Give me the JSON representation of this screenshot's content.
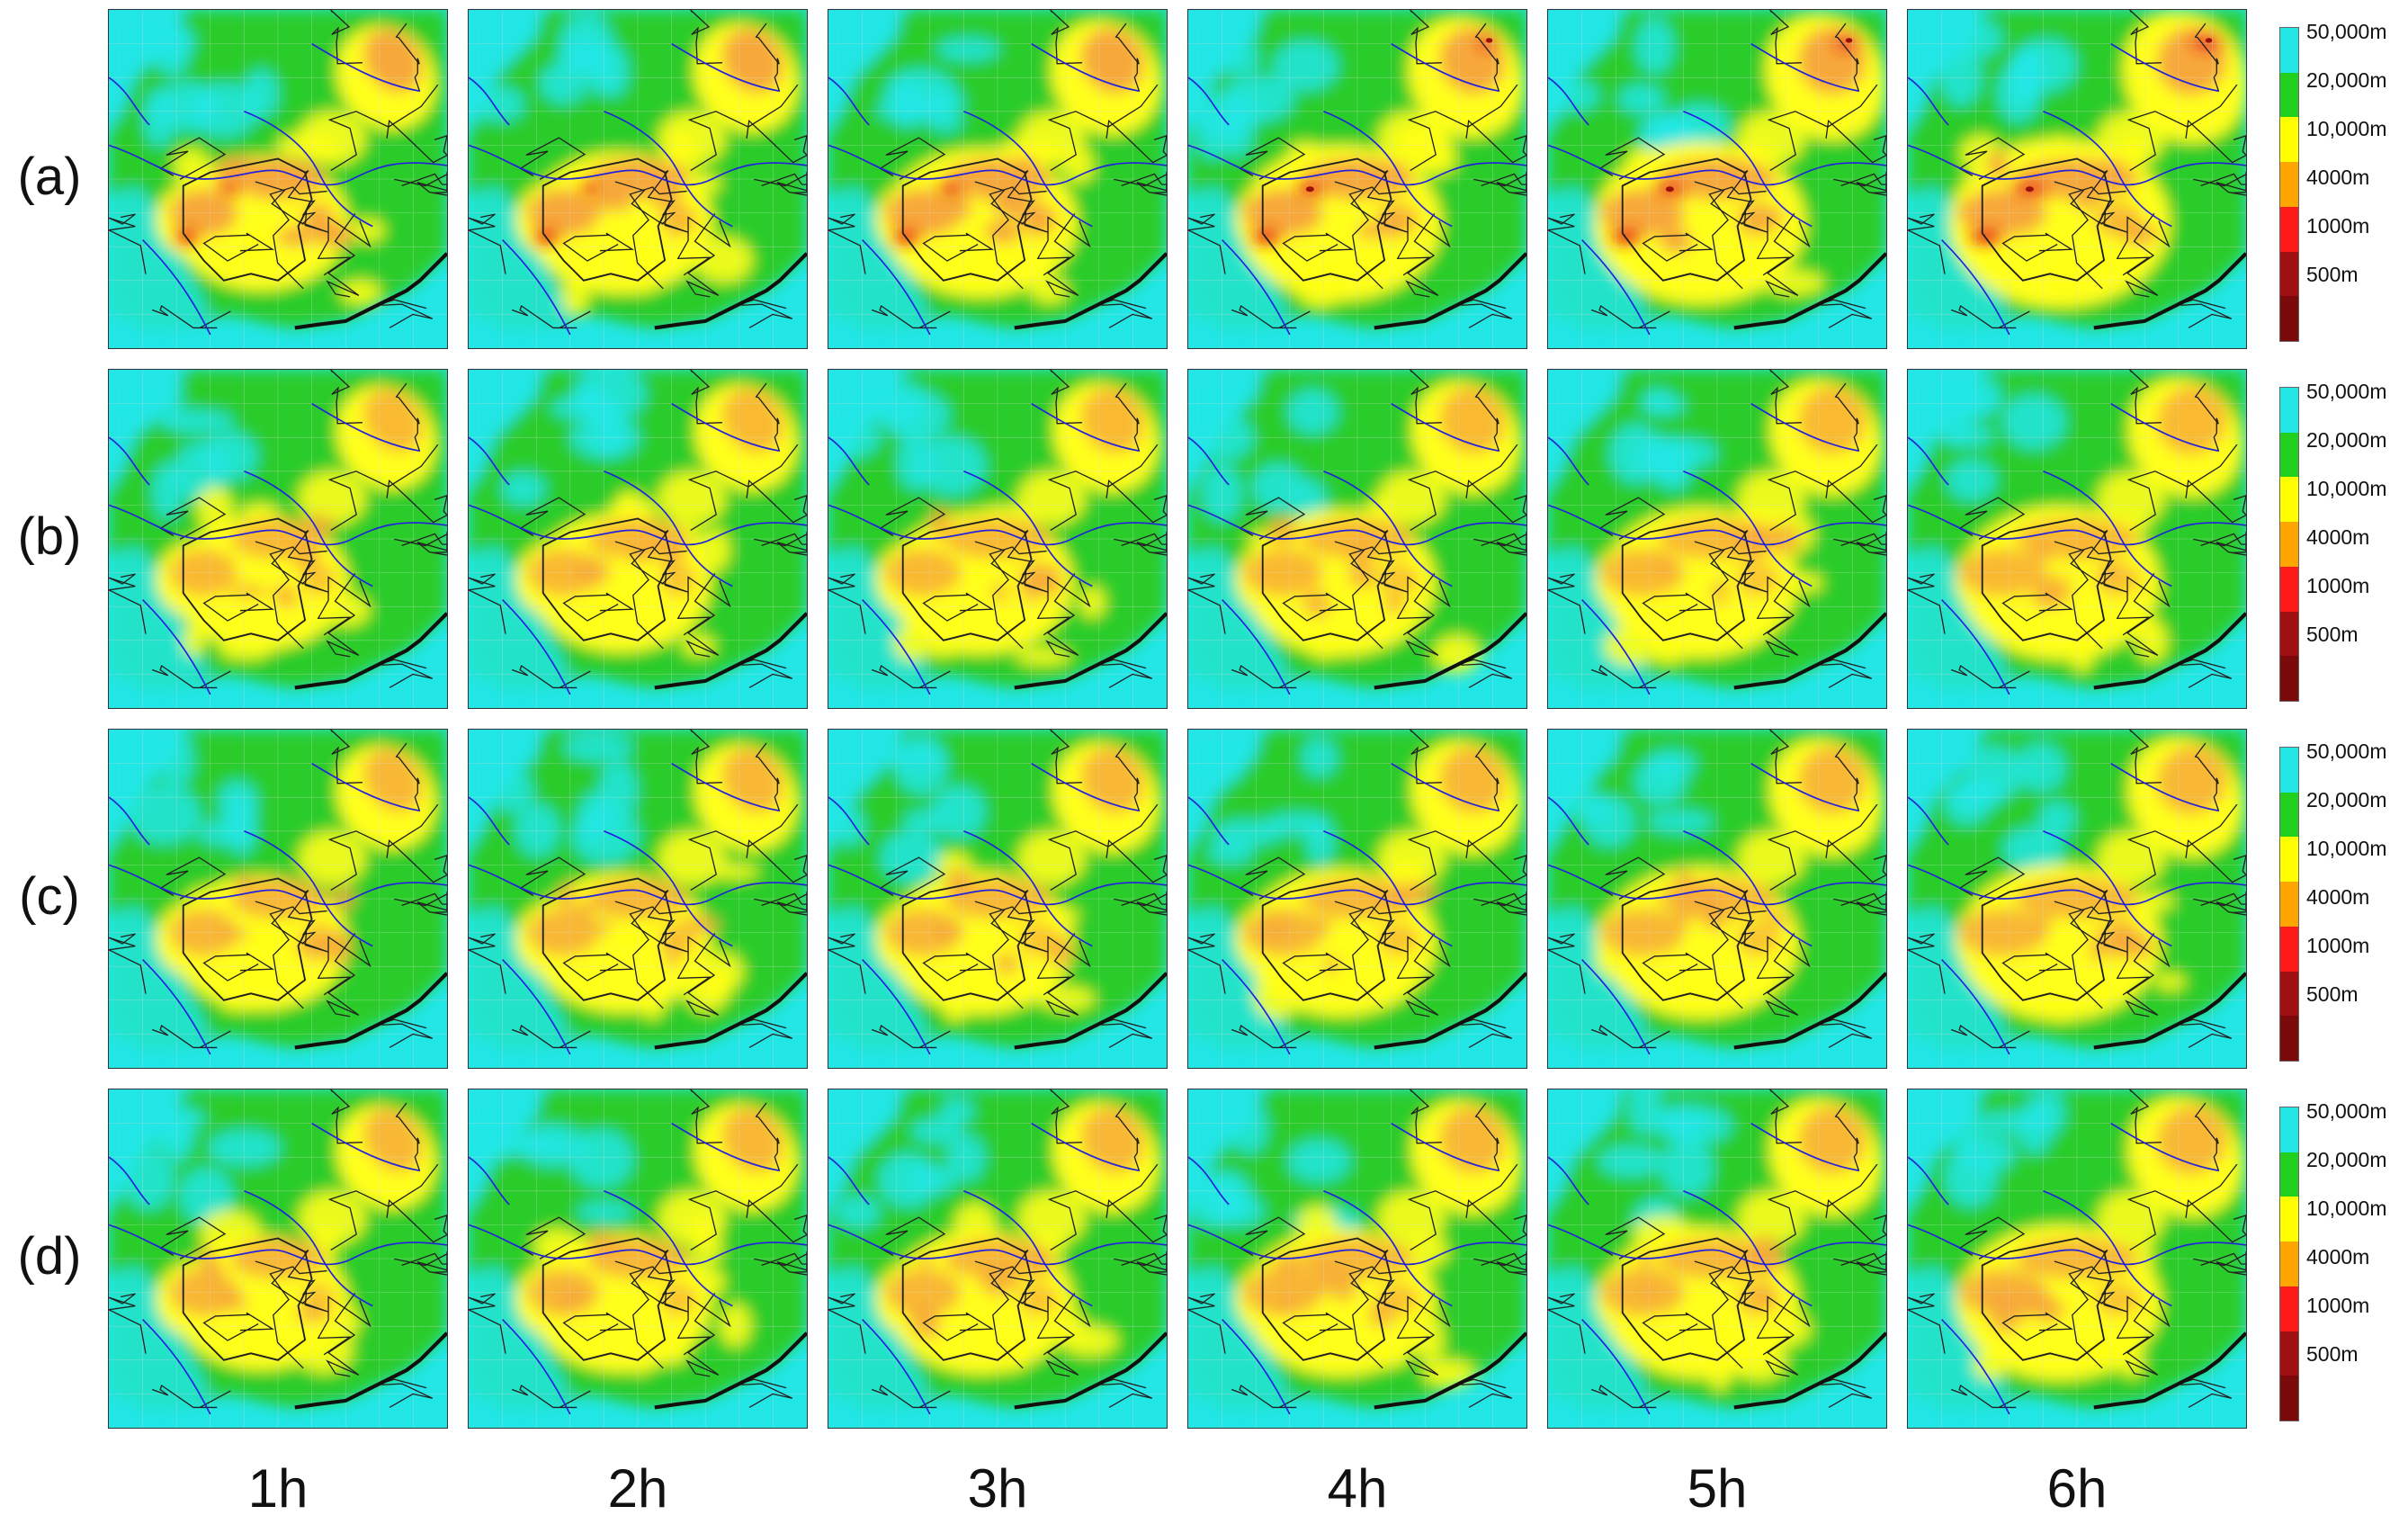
{
  "rows": [
    {
      "label": "(a)",
      "intensity": 1.0
    },
    {
      "label": "(b)",
      "intensity": 0.55
    },
    {
      "label": "(c)",
      "intensity": 0.6
    },
    {
      "label": "(d)",
      "intensity": 0.6
    }
  ],
  "columns": [
    {
      "label": "1h"
    },
    {
      "label": "2h"
    },
    {
      "label": "3h"
    },
    {
      "label": "4h"
    },
    {
      "label": "5h"
    },
    {
      "label": "6h"
    }
  ],
  "legend": {
    "labels": [
      "50,000m",
      "20,000m",
      "10,000m",
      "4000m",
      "1000m",
      "500m"
    ],
    "colors": [
      "#22e6e6",
      "#22d11e",
      "#ffff00",
      "#ffa500",
      "#ff1a1a",
      "#a01010"
    ]
  },
  "map_colors": {
    "sea": "#22e6e6",
    "green": "#2ccc2a",
    "yellow": "#ffff1a",
    "orange": "#f7a83a",
    "red": "#e8241c",
    "darkred": "#9a1010",
    "boundary": "#202020",
    "river": "#2222dd"
  }
}
